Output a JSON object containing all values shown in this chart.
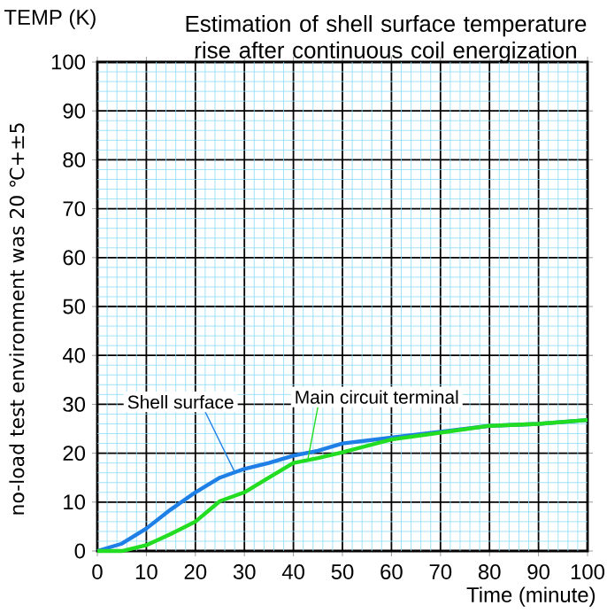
{
  "chart_data": {
    "type": "line",
    "title": "Estimation of shell surface temperature rise after continuous coil energization",
    "xlabel": "Time (minute)",
    "ylabel": "TEMP (K)",
    "annotations": [
      "no-load test environment was 20 ℃+±5"
    ],
    "x": [
      0,
      5,
      10,
      15,
      20,
      25,
      30,
      35,
      40,
      45,
      50,
      60,
      70,
      80,
      90,
      100
    ],
    "series": [
      {
        "name": "Shell surface",
        "color": "#1e7fe6",
        "values": [
          0,
          1.5,
          4.6,
          8.5,
          12,
          15,
          16.8,
          18,
          19.5,
          20.5,
          22,
          23.2,
          24.4,
          25.6,
          26,
          26.8
        ]
      },
      {
        "name": "Main circuit terminal",
        "color": "#22dd22",
        "values": [
          0,
          0,
          1.2,
          3.5,
          6,
          10.2,
          12,
          15,
          18,
          19,
          20.2,
          22.8,
          24.2,
          25.6,
          26,
          26.8
        ]
      }
    ],
    "xlim": [
      0,
      100
    ],
    "ylim": [
      0,
      100
    ],
    "xticks": [
      0,
      {
        "value": 2,
        "label": null
      },
      {
        "value": 4,
        "label": null
      },
      {
        "value": 6,
        "label": null
      },
      {
        "value": 8,
        "label": null
      },
      10,
      {
        "value": 12,
        "label": null
      },
      {
        "value": 14,
        "label": null
      },
      {
        "value": 16,
        "label": null
      },
      {
        "value": 18,
        "label": null
      },
      20,
      {
        "value": 22,
        "label": null
      },
      {
        "value": 24,
        "label": null
      },
      {
        "value": 26,
        "label": null
      },
      {
        "value": 28,
        "label": null
      },
      30,
      {
        "value": 32,
        "label": null
      },
      {
        "value": 34,
        "label": null
      },
      {
        "value": 36,
        "label": null
      },
      {
        "value": 38,
        "label": null
      },
      40,
      {
        "value": 42,
        "label": null
      },
      {
        "value": 44,
        "label": null
      },
      {
        "value": 46,
        "label": null
      },
      {
        "value": 48,
        "label": null
      },
      50,
      {
        "value": 52,
        "label": null
      },
      {
        "value": 54,
        "label": null
      },
      {
        "value": 56,
        "label": null
      },
      {
        "value": 58,
        "label": null
      },
      60,
      {
        "value": 62,
        "label": null
      },
      {
        "value": 64,
        "label": null
      },
      {
        "value": 66,
        "label": null
      },
      {
        "value": 68,
        "label": null
      },
      70,
      {
        "value": 72,
        "label": null
      },
      {
        "value": 74,
        "label": null
      },
      {
        "value": 76,
        "label": null
      },
      {
        "value": 78,
        "label": null
      },
      80,
      {
        "value": 82,
        "label": null
      },
      {
        "value": 84,
        "label": null
      },
      {
        "value": 86,
        "label": null
      },
      {
        "value": 88,
        "label": null
      },
      90,
      {
        "value": 92,
        "label": null
      },
      {
        "value": 94,
        "label": null
      },
      {
        "value": 96,
        "label": null
      },
      {
        "value": 98,
        "label": null
      },
      100
    ],
    "yticks": [
      0,
      {
        "value": 2,
        "label": null
      },
      {
        "value": 4,
        "label": null
      },
      {
        "value": 6,
        "label": null
      },
      {
        "value": 8,
        "label": null
      },
      10,
      {
        "value": 12,
        "label": null
      },
      {
        "value": 14,
        "label": null
      },
      {
        "value": 16,
        "label": null
      },
      {
        "value": 18,
        "label": null
      },
      20,
      {
        "value": 22,
        "label": null
      },
      {
        "value": 24,
        "label": null
      },
      {
        "value": 26,
        "label": null
      },
      {
        "value": 28,
        "label": null
      },
      30,
      {
        "value": 32,
        "label": null
      },
      {
        "value": 34,
        "label": null
      },
      {
        "value": 36,
        "label": null
      },
      {
        "value": 38,
        "label": null
      },
      40,
      {
        "value": 42,
        "label": null
      },
      {
        "value": 44,
        "label": null
      },
      {
        "value": 46,
        "label": null
      },
      {
        "value": 48,
        "label": null
      },
      50,
      {
        "value": 52,
        "label": null
      },
      {
        "value": 54,
        "label": null
      },
      {
        "value": 56,
        "label": null
      },
      {
        "value": 58,
        "label": null
      },
      60,
      {
        "value": 62,
        "label": null
      },
      {
        "value": 64,
        "label": null
      },
      {
        "value": 66,
        "label": null
      },
      {
        "value": 68,
        "label": null
      },
      70,
      {
        "value": 72,
        "label": null
      },
      {
        "value": 74,
        "label": null
      },
      {
        "value": 76,
        "label": null
      },
      {
        "value": 78,
        "label": null
      },
      80,
      {
        "value": 82,
        "label": null
      },
      {
        "value": 84,
        "label": null
      },
      {
        "value": 86,
        "label": null
      },
      {
        "value": 88,
        "label": null
      },
      90,
      {
        "value": 92,
        "label": null
      },
      {
        "value": 94,
        "label": null
      },
      {
        "value": 96,
        "label": null
      },
      {
        "value": 98,
        "label": null
      },
      100
    ],
    "grid": true,
    "marker": "none",
    "line_style": "solid"
  }
}
